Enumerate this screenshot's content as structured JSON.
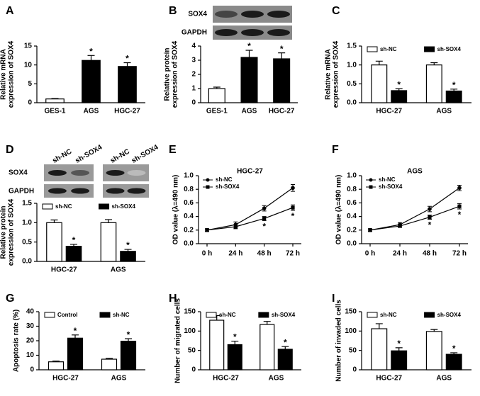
{
  "chart_data": [
    {
      "panel": "A",
      "type": "bar",
      "ylabel": [
        "Relative mRNA",
        "expression of SOX4"
      ],
      "categories": [
        "GES-1",
        "AGS",
        "HGC-27"
      ],
      "values": [
        1,
        11.2,
        9.6
      ],
      "errors": [
        0.1,
        1.3,
        1.0
      ],
      "colors": [
        "#ffffff",
        "#000000",
        "#000000"
      ],
      "marks": [
        null,
        "*",
        "*"
      ],
      "ylim": [
        0,
        15
      ],
      "yticks": [
        0,
        5,
        10,
        15
      ]
    },
    {
      "panel": "B",
      "type": "bar",
      "blot_labels": [
        "SOX4",
        "GAPDH"
      ],
      "ylabel": [
        "Relative protein",
        "expression of SOX4"
      ],
      "categories": [
        "GES-1",
        "AGS",
        "HGC-27"
      ],
      "values": [
        1,
        3.2,
        3.1
      ],
      "errors": [
        0.1,
        0.5,
        0.42
      ],
      "colors": [
        "#ffffff",
        "#000000",
        "#000000"
      ],
      "marks": [
        null,
        "*",
        "*"
      ],
      "ylim": [
        0,
        4
      ],
      "yticks": [
        0,
        1,
        2,
        3,
        4
      ]
    },
    {
      "panel": "C",
      "type": "bar",
      "ylabel": [
        "Relative mRNA",
        "expression of SOX4"
      ],
      "categories": [
        "HGC-27",
        "AGS"
      ],
      "series": [
        {
          "name": "sh-NC",
          "color": "#ffffff",
          "values": [
            1.0,
            1.0
          ],
          "errors": [
            0.1,
            0.06
          ]
        },
        {
          "name": "sh-SOX4",
          "color": "#000000",
          "values": [
            0.32,
            0.31
          ],
          "errors": [
            0.05,
            0.05
          ],
          "marks": [
            "*",
            "*"
          ]
        }
      ],
      "ylim": [
        0,
        1.5
      ],
      "yticks": [
        {
          "value": 0,
          "label": "0.0"
        },
        {
          "value": 0.5,
          "label": "0.5"
        },
        {
          "value": 1,
          "label": "1.0"
        },
        {
          "value": 1.5,
          "label": "1.5"
        }
      ],
      "legend": "top"
    },
    {
      "panel": "D",
      "type": "bar",
      "blot_labels": [
        "SOX4",
        "GAPDH"
      ],
      "lane_labels": [
        "sh-NC",
        "sh-SOX4",
        "sh-NC",
        "sh-SOX4"
      ],
      "ylabel": [
        "Relative protein",
        "expression of SOX4"
      ],
      "categories": [
        "HGC-27",
        "AGS"
      ],
      "series": [
        {
          "name": "sh-NC",
          "color": "#ffffff",
          "values": [
            1.0,
            1.0
          ],
          "errors": [
            0.07,
            0.08
          ]
        },
        {
          "name": "sh-SOX4",
          "color": "#000000",
          "values": [
            0.39,
            0.26
          ],
          "errors": [
            0.05,
            0.05
          ],
          "marks": [
            "*",
            "*"
          ]
        }
      ],
      "ylim": [
        0,
        1.5
      ],
      "yticks": [
        {
          "value": 0,
          "label": "0.0"
        },
        {
          "value": 0.5,
          "label": "0.5"
        },
        {
          "value": 1,
          "label": "1.0"
        },
        {
          "value": 1.5,
          "label": "1.5"
        }
      ],
      "legend": "top"
    },
    {
      "panel": "E",
      "type": "line",
      "title": "HGC-27",
      "ylabel": [
        "OD value (λ=490 nm)"
      ],
      "categories": [
        "0 h",
        "24 h",
        "48 h",
        "72 h"
      ],
      "series": [
        {
          "name": "sh-NC",
          "color": "#000000",
          "marker": "circle",
          "values": [
            0.2,
            0.28,
            0.52,
            0.82
          ],
          "errors": [
            0.02,
            0.04,
            0.04,
            0.05
          ]
        },
        {
          "name": "sh-SOX4",
          "color": "#000000",
          "marker": "square",
          "values": [
            0.2,
            0.25,
            0.37,
            0.53
          ],
          "errors": [
            0.02,
            0.03,
            0.03,
            0.04
          ],
          "marks": [
            null,
            null,
            "*",
            "*"
          ]
        }
      ],
      "ylim": [
        0,
        1
      ],
      "yticks": [
        {
          "value": 0,
          "label": "0.0"
        },
        {
          "value": 0.2,
          "label": "0.2"
        },
        {
          "value": 0.4,
          "label": "0.4"
        },
        {
          "value": 0.6,
          "label": "0.6"
        },
        {
          "value": 0.8,
          "label": "0.8"
        },
        {
          "value": 1,
          "label": "1.0"
        }
      ],
      "legend": "top-left"
    },
    {
      "panel": "F",
      "type": "line",
      "title": "AGS",
      "ylabel": [
        "OD value (λ=490 nm)"
      ],
      "categories": [
        "0 h",
        "24 h",
        "48 h",
        "72 h"
      ],
      "series": [
        {
          "name": "sh-NC",
          "color": "#000000",
          "marker": "circle",
          "values": [
            0.2,
            0.28,
            0.51,
            0.82
          ],
          "errors": [
            0.02,
            0.03,
            0.04,
            0.04
          ]
        },
        {
          "name": "sh-SOX4",
          "color": "#000000",
          "marker": "square",
          "values": [
            0.2,
            0.26,
            0.39,
            0.55
          ],
          "errors": [
            0.02,
            0.02,
            0.03,
            0.04
          ],
          "marks": [
            null,
            null,
            "*",
            "*"
          ]
        }
      ],
      "ylim": [
        0,
        1
      ],
      "yticks": [
        {
          "value": 0,
          "label": "0.0"
        },
        {
          "value": 0.2,
          "label": "0.2"
        },
        {
          "value": 0.4,
          "label": "0.4"
        },
        {
          "value": 0.6,
          "label": "0.6"
        },
        {
          "value": 0.8,
          "label": "0.8"
        },
        {
          "value": 1,
          "label": "1.0"
        }
      ],
      "legend": "top-left"
    },
    {
      "panel": "G",
      "type": "bar",
      "ylabel": [
        "Apoptosis rate (%)"
      ],
      "categories": [
        "HGC-27",
        "AGS"
      ],
      "series": [
        {
          "name": "Control",
          "color": "#ffffff",
          "values": [
            5.5,
            7.3
          ],
          "errors": [
            0.5,
            0.6
          ]
        },
        {
          "name": "sh-NC",
          "color": "#000000",
          "values": [
            21.8,
            19.7
          ],
          "errors": [
            2.2,
            1.7
          ],
          "marks": [
            "*",
            "*"
          ]
        }
      ],
      "ylim": [
        0,
        40
      ],
      "yticks": [
        0,
        10,
        20,
        30,
        40
      ],
      "legend": "top"
    },
    {
      "panel": "H",
      "type": "bar",
      "ylabel": [
        "Number of migrated cells"
      ],
      "categories": [
        "HGC-27",
        "AGS"
      ],
      "series": [
        {
          "name": "sh-NC",
          "color": "#ffffff",
          "values": [
            128,
            117
          ],
          "errors": [
            12,
            8
          ]
        },
        {
          "name": "sh-SOX4",
          "color": "#000000",
          "values": [
            65,
            53
          ],
          "errors": [
            9,
            7
          ],
          "marks": [
            "*",
            "*"
          ]
        }
      ],
      "ylim": [
        0,
        150
      ],
      "yticks": [
        0,
        50,
        100,
        150
      ],
      "legend": "top"
    },
    {
      "panel": "I",
      "type": "bar",
      "ylabel": [
        "Number of invaded cells"
      ],
      "categories": [
        "HGC-27",
        "AGS"
      ],
      "series": [
        {
          "name": "sh-NC",
          "color": "#ffffff",
          "values": [
            106,
            99
          ],
          "errors": [
            13,
            5
          ]
        },
        {
          "name": "sh-SOX4",
          "color": "#000000",
          "values": [
            49,
            40
          ],
          "errors": [
            8,
            4
          ],
          "marks": [
            "*",
            "*"
          ]
        }
      ],
      "ylim": [
        0,
        150
      ],
      "yticks": [
        0,
        50,
        100,
        150
      ],
      "legend": "top"
    }
  ]
}
